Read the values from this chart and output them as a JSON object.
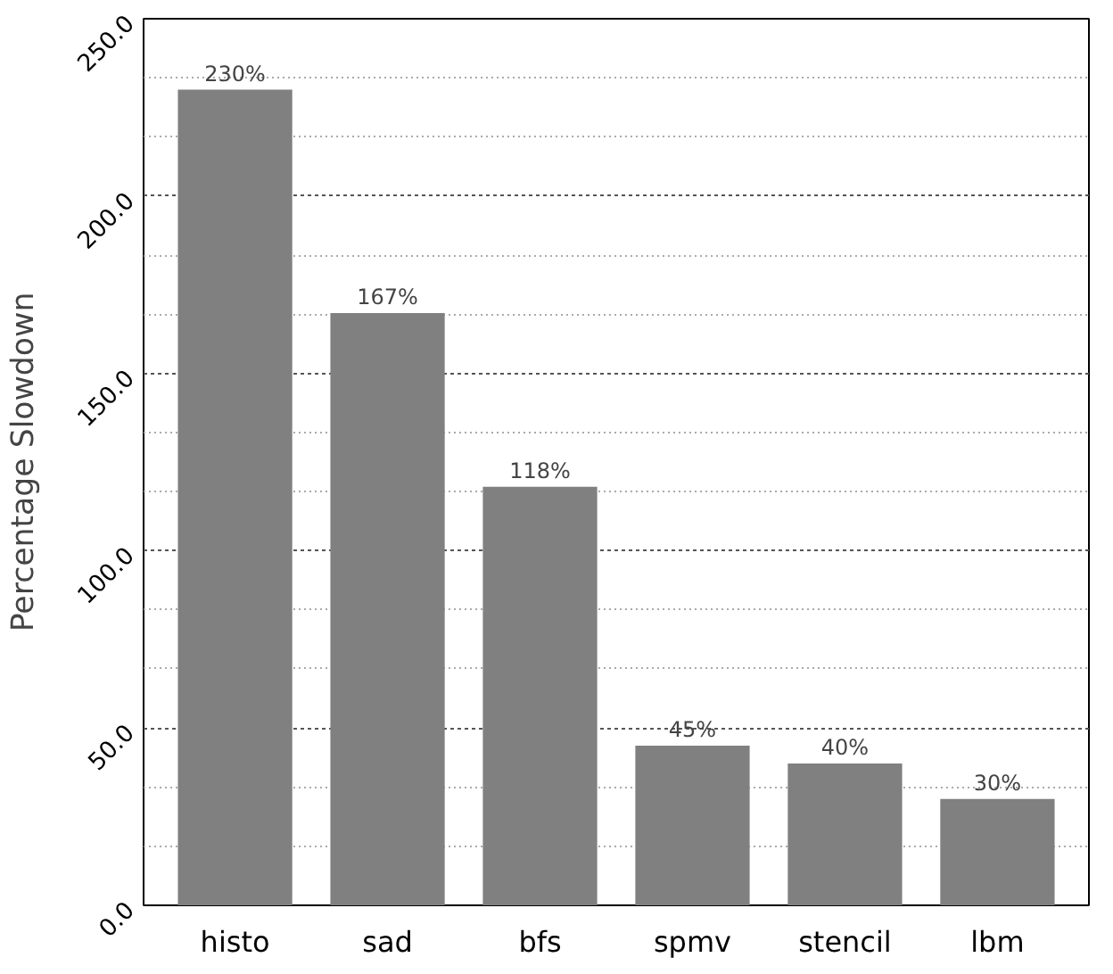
{
  "chart_data": {
    "type": "bar",
    "ylabel": "Percentage Slowdown",
    "categories": [
      "histo",
      "sad",
      "bfs",
      "spmv",
      "stencil",
      "lbm"
    ],
    "values": [
      230,
      167,
      118,
      45,
      40,
      30
    ],
    "value_labels": [
      "230%",
      "167%",
      "118%",
      "45%",
      "40%",
      "30%"
    ],
    "color": "#808080",
    "ylim": [
      0,
      250
    ],
    "yticks": [
      {
        "value": 0,
        "label": "0.0"
      },
      {
        "value": 50,
        "label": "50.0"
      },
      {
        "value": 100,
        "label": "100.0"
      },
      {
        "value": 150,
        "label": "150.0"
      },
      {
        "value": 200,
        "label": "200.0"
      },
      {
        "value": 250,
        "label": "250.0"
      }
    ],
    "grid": "y"
  }
}
